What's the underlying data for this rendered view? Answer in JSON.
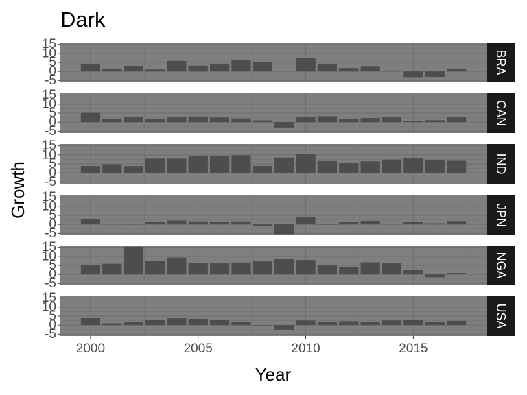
{
  "chart_data": {
    "type": "bar",
    "title": "Dark",
    "xlabel": "Year",
    "ylabel": "Growth",
    "facets": "rows",
    "ylim": [
      -6,
      16
    ],
    "xlim": [
      1998.6,
      2018.4
    ],
    "yticks": [
      -5,
      0,
      5,
      10,
      15
    ],
    "xticks": [
      2000,
      2005,
      2010,
      2015
    ],
    "x": [
      2000,
      2001,
      2002,
      2003,
      2004,
      2005,
      2006,
      2007,
      2008,
      2009,
      2010,
      2011,
      2012,
      2013,
      2014,
      2015,
      2016,
      2017
    ],
    "panels": [
      {
        "label": "BRA",
        "values": [
          4.1,
          1.4,
          3.1,
          1.1,
          5.8,
          3.2,
          4.0,
          6.1,
          5.1,
          null,
          7.5,
          4.0,
          1.9,
          3.0,
          0.5,
          -3.5,
          -3.3,
          1.3
        ]
      },
      {
        "label": "CAN",
        "values": [
          5.2,
          1.8,
          3.0,
          1.8,
          3.1,
          3.2,
          2.6,
          2.1,
          1.0,
          -2.9,
          3.1,
          3.3,
          1.8,
          2.3,
          2.9,
          0.7,
          1.1,
          3.0
        ]
      },
      {
        "label": "IND",
        "values": [
          3.8,
          4.8,
          3.8,
          7.9,
          7.9,
          9.3,
          9.3,
          9.8,
          3.9,
          8.5,
          10.3,
          6.6,
          5.5,
          6.4,
          7.4,
          8.0,
          7.1,
          6.7
        ]
      },
      {
        "label": "JPN",
        "values": [
          2.8,
          0.4,
          0.1,
          1.5,
          2.2,
          1.7,
          1.4,
          1.7,
          -1.1,
          -5.4,
          4.2,
          -0.1,
          1.5,
          2.0,
          0.4,
          1.2,
          0.6,
          1.9
        ]
      },
      {
        "label": "NGA",
        "values": [
          5.0,
          5.9,
          15.3,
          7.3,
          9.3,
          6.4,
          6.1,
          6.6,
          7.2,
          8.4,
          8.0,
          5.3,
          4.2,
          6.7,
          6.3,
          2.7,
          -1.6,
          0.8
        ]
      },
      {
        "label": "USA",
        "values": [
          4.1,
          1.0,
          1.7,
          2.9,
          3.8,
          3.5,
          2.9,
          1.9,
          -0.1,
          -2.5,
          2.6,
          1.6,
          2.2,
          1.7,
          2.6,
          2.9,
          1.6,
          2.4
        ]
      }
    ]
  }
}
